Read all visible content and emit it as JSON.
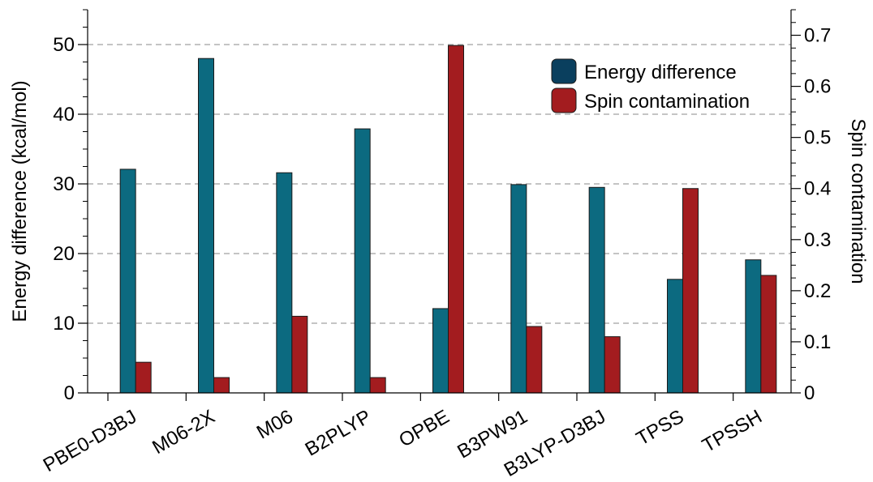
{
  "chart_data": {
    "type": "bar",
    "categories": [
      "PBE0-D3BJ",
      "M06-2X",
      "M06",
      "B2PLYP",
      "OPBE",
      "B3PW91",
      "B3LYP-D3BJ",
      "TPSS",
      "TPSSH"
    ],
    "series": [
      {
        "name": "Energy difference",
        "axis": "left",
        "color": "#0c6a80",
        "values": [
          32.1,
          48.0,
          31.6,
          37.9,
          12.1,
          29.9,
          29.5,
          16.3,
          19.1
        ]
      },
      {
        "name": "Spin contamination",
        "axis": "right",
        "color": "#a31c1f",
        "values": [
          0.06,
          0.03,
          0.15,
          0.03,
          0.68,
          0.13,
          0.11,
          0.4,
          0.23
        ]
      }
    ],
    "ylabel": "Energy difference (kcal/mol)",
    "y2label": "Spin contamination",
    "ylim": [
      0,
      55
    ],
    "y2lim": [
      0,
      0.75
    ],
    "yticks": [
      0,
      10,
      20,
      30,
      40,
      50
    ],
    "y2ticks": [
      0,
      0.1,
      0.2,
      0.3,
      0.4,
      0.5,
      0.6,
      0.7
    ],
    "grid": "horizontal dashed",
    "legend_position": "top-right"
  }
}
